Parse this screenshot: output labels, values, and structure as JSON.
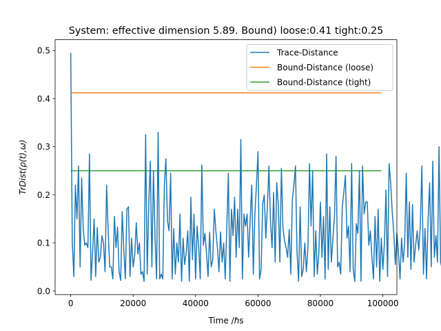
{
  "chart_data": {
    "type": "line",
    "title": "System: effective dimension 5.89. Bound) loose:0.41 tight:0.25",
    "xlabel": "Time /ℏs",
    "ylabel": "TrDist(ρ(t),ω)",
    "xlim": [
      -5000,
      104500
    ],
    "ylim": [
      -0.0075,
      0.5225
    ],
    "xticks": [
      0,
      20000,
      40000,
      60000,
      80000,
      100000
    ],
    "xtick_labels": [
      "0",
      "20000",
      "40000",
      "60000",
      "80000",
      "100000"
    ],
    "yticks": [
      0.0,
      0.1,
      0.2,
      0.3,
      0.4,
      0.5
    ],
    "ytick_labels": [
      "0.0",
      "0.1",
      "0.2",
      "0.3",
      "0.4",
      "0.5"
    ],
    "grid": false,
    "legend_position": "upper right",
    "series": [
      {
        "name": "Trace-Distance",
        "color": "#1f77b4",
        "x_start": 0,
        "x_step": 500,
        "y": [
          0.495,
          0.1,
          0.03,
          0.22,
          0.15,
          0.26,
          0.05,
          0.235,
          0.13,
          0.095,
          0.1,
          0.09,
          0.285,
          0.022,
          0.08,
          0.15,
          0.03,
          0.132,
          0.06,
          0.07,
          0.115,
          0.1,
          0.04,
          0.22,
          0.125,
          0.05,
          0.05,
          0.025,
          0.155,
          0.09,
          0.133,
          0.04,
          0.022,
          0.165,
          0.085,
          0.025,
          0.17,
          0.175,
          0.03,
          0.11,
          0.05,
          0.075,
          0.142,
          0.077,
          0.1,
          0.035,
          0.04,
          0.02,
          0.325,
          0.035,
          0.18,
          0.27,
          0.05,
          0.25,
          0.115,
          0.025,
          0.33,
          0.025,
          0.035,
          0.025,
          0.22,
          0.275,
          0.145,
          0.125,
          0.245,
          0.025,
          0.13,
          0.035,
          0.1,
          0.06,
          0.16,
          0.02,
          0.11,
          0.055,
          0.08,
          0.125,
          0.02,
          0.195,
          0.065,
          0.16,
          0.025,
          0.135,
          0.09,
          0.025,
          0.262,
          0.095,
          0.12,
          0.08,
          0.03,
          0.122,
          0.05,
          0.065,
          0.17,
          0.125,
          0.09,
          0.04,
          0.123,
          0.06,
          0.1,
          0.025,
          0.133,
          0.245,
          0.02,
          0.17,
          0.115,
          0.195,
          0.07,
          0.17,
          0.09,
          0.315,
          0.025,
          0.16,
          0.135,
          0.16,
          0.07,
          0.15,
          0.22,
          0.035,
          0.16,
          0.22,
          0.29,
          0.025,
          0.045,
          0.18,
          0.2,
          0.11,
          0.175,
          0.26,
          0.145,
          0.09,
          0.205,
          0.06,
          0.225,
          0.18,
          0.06,
          0.255,
          0.13,
          0.105,
          0.09,
          0.07,
          0.128,
          0.035,
          0.19,
          0.22,
          0.26,
          0.08,
          0.02,
          0.175,
          0.03,
          0.045,
          0.1,
          0.04,
          0.09,
          0.265,
          0.135,
          0.25,
          0.03,
          0.125,
          0.035,
          0.08,
          0.185,
          0.07,
          0.155,
          0.025,
          0.285,
          0.045,
          0.175,
          0.06,
          0.11,
          0.155,
          0.28,
          0.05,
          0.06,
          0.035,
          0.175,
          0.205,
          0.24,
          0.11,
          0.135,
          0.04,
          0.265,
          0.045,
          0.02,
          0.14,
          0.12,
          0.25,
          0.02,
          0.26,
          0.16,
          0.185,
          0.185,
          0.095,
          0.125,
          0.07,
          0.025,
          0.155,
          0.05,
          0.17,
          0.02,
          0.11,
          0.045,
          0.1,
          0.21,
          0.03,
          0.265,
          0.225,
          0.165,
          0.12,
          0.055,
          0.12,
          0.08,
          0.025,
          0.11,
          0.06,
          0.1,
          0.245,
          0.07,
          0.185,
          0.045,
          0.18,
          0.06,
          0.095,
          0.125,
          0.085,
          0.135,
          0.26,
          0.035,
          0.13,
          0.025,
          0.15,
          0.225,
          0.05,
          0.27,
          0.07,
          0.115,
          0.06,
          0.3,
          0.06,
          0.045,
          0.125,
          0.095,
          0.285
        ]
      },
      {
        "name": "Bound-Distance (loose)",
        "color": "#ff7f0e",
        "x": [
          0,
          99500
        ],
        "y": [
          0.412,
          0.412
        ]
      },
      {
        "name": "Bound-Distance (tight)",
        "color": "#2ca02c",
        "x": [
          0,
          99500
        ],
        "y": [
          0.25,
          0.25
        ]
      }
    ]
  }
}
